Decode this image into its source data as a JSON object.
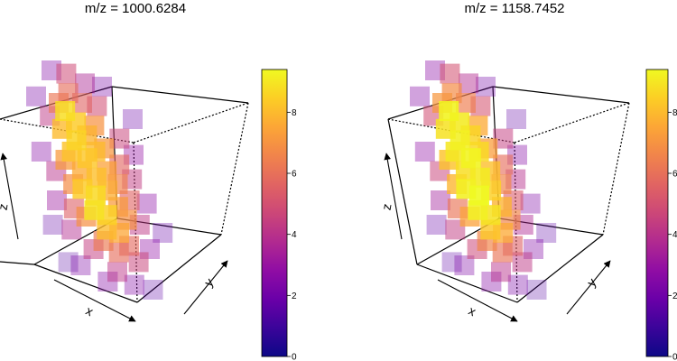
{
  "colors": {
    "scale": [
      "#0d0887",
      "#3b049a",
      "#6a00a8",
      "#900da4",
      "#b12a90",
      "#cc4778",
      "#e16462",
      "#f1844b",
      "#fca636",
      "#fcce25",
      "#f0f921"
    ],
    "box": "#000000"
  },
  "chart_data": [
    {
      "type": "scatter3d",
      "title": "m/z = 1000.6284",
      "xlabel": "x",
      "ylabel": "y",
      "zlabel": "z",
      "colorbar": {
        "ticks": [
          "0",
          "2",
          "4",
          "6",
          "8"
        ],
        "range": [
          0,
          9.4
        ],
        "position": "right"
      },
      "description_points": "voxels shown as translucent squares, low intensity purple on the outside, high intensity yellow in the core",
      "points": [
        {
          "u": 0.14,
          "v": -0.15,
          "val": 8.8
        },
        {
          "u": 0.21,
          "v": -0.08,
          "val": 8.4
        },
        {
          "u": 0.08,
          "v": -0.04,
          "val": 8.0
        },
        {
          "u": 0.18,
          "v": 0.03,
          "val": 8.6
        },
        {
          "u": 0.28,
          "v": 0.0,
          "val": 7.8
        },
        {
          "u": 0.12,
          "v": 0.1,
          "val": 8.2
        },
        {
          "u": 0.24,
          "v": 0.14,
          "val": 8.3
        },
        {
          "u": 0.32,
          "v": 0.1,
          "val": 8.0
        },
        {
          "u": 0.17,
          "v": 0.22,
          "val": 7.6
        },
        {
          "u": 0.28,
          "v": 0.26,
          "val": 8.1
        },
        {
          "u": 0.38,
          "v": 0.22,
          "val": 7.4
        },
        {
          "u": 0.14,
          "v": 0.33,
          "val": 8.4
        },
        {
          "u": 0.24,
          "v": 0.37,
          "val": 8.7
        },
        {
          "u": 0.35,
          "v": 0.34,
          "val": 7.7
        },
        {
          "u": 0.2,
          "v": 0.46,
          "val": 8.9
        },
        {
          "u": 0.3,
          "v": 0.49,
          "val": 8.5
        },
        {
          "u": 0.41,
          "v": 0.44,
          "val": 7.2
        },
        {
          "u": 0.27,
          "v": 0.58,
          "val": 8.0
        },
        {
          "u": 0.37,
          "v": 0.6,
          "val": 7.5
        },
        {
          "u": 0.46,
          "v": 0.52,
          "val": 6.9
        },
        {
          "u": 0.05,
          "v": 0.15,
          "val": 7.2
        },
        {
          "u": 0.07,
          "v": 0.3,
          "val": 6.8
        },
        {
          "u": 0.36,
          "v": -0.06,
          "val": 7.0
        },
        {
          "u": 0.4,
          "v": 0.08,
          "val": 7.1
        },
        {
          "u": 0.45,
          "v": 0.3,
          "val": 6.5
        },
        {
          "u": 0.12,
          "v": 0.5,
          "val": 6.9
        },
        {
          "u": 0.22,
          "v": 0.65,
          "val": 6.3
        },
        {
          "u": 0.33,
          "v": 0.72,
          "val": 5.9
        },
        {
          "u": 0.43,
          "v": 0.68,
          "val": 5.8
        },
        {
          "u": 0.52,
          "v": 0.4,
          "val": 5.6
        },
        {
          "u": 0.5,
          "v": 0.18,
          "val": 5.7
        },
        {
          "u": 0.3,
          "v": -0.2,
          "val": 5.6
        },
        {
          "u": 0.2,
          "v": -0.26,
          "val": 5.9
        },
        {
          "u": 0.03,
          "v": 0.45,
          "val": 5.5
        },
        {
          "u": 0.1,
          "v": -0.2,
          "val": 6.2
        },
        {
          "u": 0.42,
          "v": -0.18,
          "val": 4.9
        },
        {
          "u": 0.55,
          "v": 0.02,
          "val": 4.6
        },
        {
          "u": 0.58,
          "v": 0.27,
          "val": 4.3
        },
        {
          "u": 0.56,
          "v": 0.55,
          "val": 4.2
        },
        {
          "u": 0.48,
          "v": 0.78,
          "val": 4.6
        },
        {
          "u": 0.28,
          "v": 0.84,
          "val": 4.1
        },
        {
          "u": 0.12,
          "v": 0.7,
          "val": 4.4
        },
        {
          "u": -0.03,
          "v": 0.58,
          "val": 3.8
        },
        {
          "u": -0.05,
          "v": 0.22,
          "val": 4.0
        },
        {
          "u": 0.0,
          "v": -0.12,
          "val": 4.2
        },
        {
          "u": 0.22,
          "v": -0.38,
          "val": 4.8
        },
        {
          "u": 0.36,
          "v": -0.32,
          "val": 3.6
        },
        {
          "u": -0.1,
          "v": 0.4,
          "val": 3.1
        },
        {
          "u": 0.64,
          "v": 0.12,
          "val": 2.9
        },
        {
          "u": 0.66,
          "v": 0.42,
          "val": 2.7
        },
        {
          "u": 0.6,
          "v": 0.7,
          "val": 2.8
        },
        {
          "u": 0.4,
          "v": 0.92,
          "val": 2.5
        },
        {
          "u": 0.18,
          "v": 0.9,
          "val": 2.6
        },
        {
          "u": -0.02,
          "v": 0.8,
          "val": 2.4
        },
        {
          "u": -0.14,
          "v": 0.1,
          "val": 2.6
        },
        {
          "u": -0.08,
          "v": -0.24,
          "val": 2.3
        },
        {
          "u": 0.1,
          "v": -0.4,
          "val": 2.5
        },
        {
          "u": 0.5,
          "v": -0.3,
          "val": 2.2
        },
        {
          "u": 0.7,
          "v": -0.1,
          "val": 1.9
        },
        {
          "u": 0.74,
          "v": 0.6,
          "val": 1.8
        },
        {
          "u": -0.18,
          "v": 0.55,
          "val": 1.7
        },
        {
          "u": 0.55,
          "v": 0.95,
          "val": 1.6
        },
        {
          "u": -0.12,
          "v": 0.78,
          "val": 1.5
        }
      ]
    },
    {
      "type": "scatter3d",
      "title": "m/z = 1158.7452",
      "xlabel": "x",
      "ylabel": "y",
      "zlabel": "z",
      "colorbar": {
        "ticks": [
          "0",
          "2",
          "4",
          "6",
          "8"
        ],
        "range": [
          0,
          9.4
        ],
        "position": "right"
      },
      "description_points": "voxels shown as translucent squares, low intensity purple on the outside, high intensity yellow in the core",
      "points": [
        {
          "u": 0.14,
          "v": -0.15,
          "val": 9.3
        },
        {
          "u": 0.21,
          "v": -0.08,
          "val": 9.1
        },
        {
          "u": 0.08,
          "v": -0.04,
          "val": 8.9
        },
        {
          "u": 0.18,
          "v": 0.03,
          "val": 9.2
        },
        {
          "u": 0.28,
          "v": 0.0,
          "val": 8.6
        },
        {
          "u": 0.12,
          "v": 0.1,
          "val": 9.0
        },
        {
          "u": 0.24,
          "v": 0.14,
          "val": 9.3
        },
        {
          "u": 0.32,
          "v": 0.1,
          "val": 8.7
        },
        {
          "u": 0.17,
          "v": 0.22,
          "val": 8.8
        },
        {
          "u": 0.28,
          "v": 0.26,
          "val": 9.1
        },
        {
          "u": 0.38,
          "v": 0.22,
          "val": 8.1
        },
        {
          "u": 0.14,
          "v": 0.33,
          "val": 9.2
        },
        {
          "u": 0.24,
          "v": 0.37,
          "val": 9.4
        },
        {
          "u": 0.35,
          "v": 0.34,
          "val": 8.5
        },
        {
          "u": 0.2,
          "v": 0.46,
          "val": 9.2
        },
        {
          "u": 0.3,
          "v": 0.49,
          "val": 8.9
        },
        {
          "u": 0.41,
          "v": 0.44,
          "val": 7.8
        },
        {
          "u": 0.27,
          "v": 0.58,
          "val": 8.3
        },
        {
          "u": 0.37,
          "v": 0.6,
          "val": 7.6
        },
        {
          "u": 0.46,
          "v": 0.52,
          "val": 6.6
        },
        {
          "u": 0.05,
          "v": 0.15,
          "val": 8.2
        },
        {
          "u": 0.07,
          "v": 0.3,
          "val": 7.9
        },
        {
          "u": 0.36,
          "v": -0.06,
          "val": 7.6
        },
        {
          "u": 0.4,
          "v": 0.08,
          "val": 7.3
        },
        {
          "u": 0.45,
          "v": 0.3,
          "val": 6.6
        },
        {
          "u": 0.12,
          "v": 0.5,
          "val": 7.4
        },
        {
          "u": 0.22,
          "v": 0.65,
          "val": 6.6
        },
        {
          "u": 0.33,
          "v": 0.72,
          "val": 6.1
        },
        {
          "u": 0.43,
          "v": 0.68,
          "val": 5.5
        },
        {
          "u": 0.52,
          "v": 0.4,
          "val": 5.3
        },
        {
          "u": 0.5,
          "v": 0.18,
          "val": 5.9
        },
        {
          "u": 0.3,
          "v": -0.2,
          "val": 6.4
        },
        {
          "u": 0.2,
          "v": -0.26,
          "val": 6.8
        },
        {
          "u": 0.03,
          "v": 0.45,
          "val": 6.1
        },
        {
          "u": 0.1,
          "v": -0.2,
          "val": 7.1
        },
        {
          "u": 0.42,
          "v": -0.18,
          "val": 5.1
        },
        {
          "u": 0.55,
          "v": 0.02,
          "val": 4.4
        },
        {
          "u": 0.58,
          "v": 0.27,
          "val": 3.9
        },
        {
          "u": 0.56,
          "v": 0.55,
          "val": 3.7
        },
        {
          "u": 0.48,
          "v": 0.78,
          "val": 4.2
        },
        {
          "u": 0.28,
          "v": 0.84,
          "val": 4.0
        },
        {
          "u": 0.12,
          "v": 0.7,
          "val": 4.7
        },
        {
          "u": -0.03,
          "v": 0.58,
          "val": 4.3
        },
        {
          "u": -0.05,
          "v": 0.22,
          "val": 4.6
        },
        {
          "u": 0.0,
          "v": -0.12,
          "val": 4.9
        },
        {
          "u": 0.22,
          "v": -0.38,
          "val": 5.0
        },
        {
          "u": 0.36,
          "v": -0.32,
          "val": 3.8
        },
        {
          "u": -0.1,
          "v": 0.4,
          "val": 3.3
        },
        {
          "u": 0.64,
          "v": 0.12,
          "val": 2.6
        },
        {
          "u": 0.66,
          "v": 0.42,
          "val": 2.4
        },
        {
          "u": 0.6,
          "v": 0.7,
          "val": 2.5
        },
        {
          "u": 0.4,
          "v": 0.92,
          "val": 2.3
        },
        {
          "u": 0.18,
          "v": 0.9,
          "val": 2.6
        },
        {
          "u": -0.02,
          "v": 0.8,
          "val": 2.4
        },
        {
          "u": -0.14,
          "v": 0.1,
          "val": 2.8
        },
        {
          "u": -0.08,
          "v": -0.24,
          "val": 2.6
        },
        {
          "u": 0.1,
          "v": -0.4,
          "val": 2.7
        },
        {
          "u": 0.5,
          "v": -0.3,
          "val": 2.1
        },
        {
          "u": 0.7,
          "v": -0.1,
          "val": 1.7
        },
        {
          "u": 0.74,
          "v": 0.6,
          "val": 1.6
        },
        {
          "u": -0.18,
          "v": 0.55,
          "val": 1.8
        },
        {
          "u": 0.55,
          "v": 0.95,
          "val": 1.5
        },
        {
          "u": -0.12,
          "v": 0.78,
          "val": 1.6
        }
      ]
    }
  ]
}
